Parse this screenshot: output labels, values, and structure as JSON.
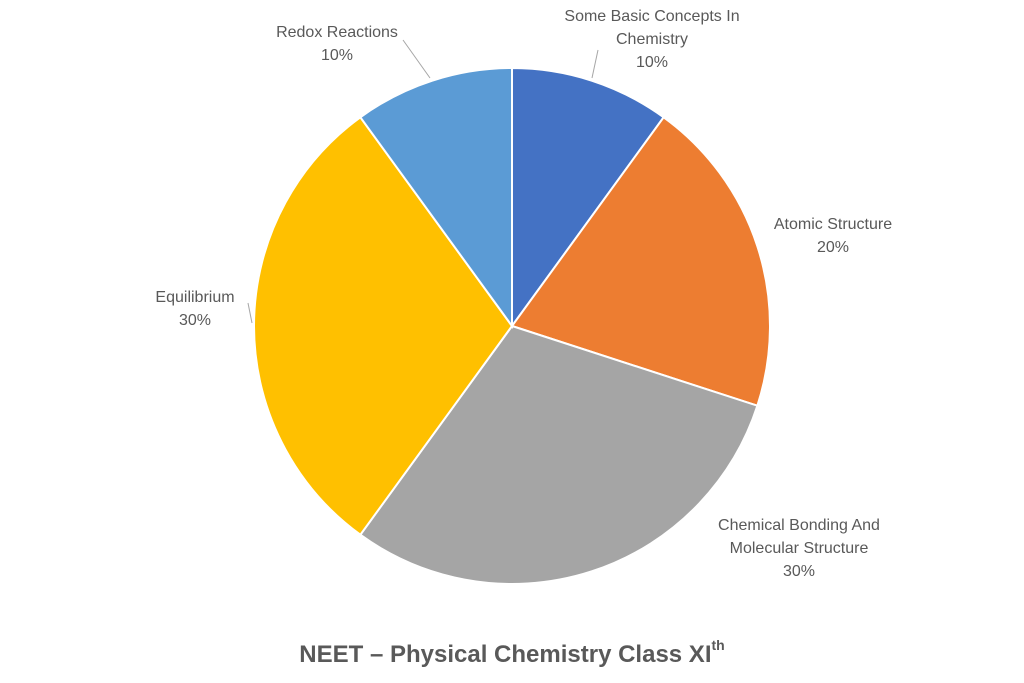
{
  "chart_data": {
    "type": "pie",
    "title": "NEET – Physical Chemistry Class XI",
    "title_superscript": "th",
    "start_angle_deg": 0,
    "direction": "clockwise",
    "slices": [
      {
        "label": "Some Basic Concepts In Chemistry",
        "label_lines": [
          "Some Basic Concepts In",
          "Chemistry"
        ],
        "value": 10,
        "display": "10%",
        "color": "#4472C4"
      },
      {
        "label": "Atomic Structure",
        "label_lines": [
          "Atomic Structure"
        ],
        "value": 20,
        "display": "20%",
        "color": "#ED7D31"
      },
      {
        "label": "Chemical Bonding And Molecular Structure",
        "label_lines": [
          "Chemical Bonding And",
          "Molecular Structure"
        ],
        "value": 30,
        "display": "30%",
        "color": "#A5A5A5"
      },
      {
        "label": "Equilibrium",
        "label_lines": [
          "Equilibrium"
        ],
        "value": 30,
        "display": "30%",
        "color": "#FFC000"
      },
      {
        "label": "Redox Reactions",
        "label_lines": [
          "Redox Reactions"
        ],
        "value": 10,
        "display": "10%",
        "color": "#5B9BD5"
      }
    ]
  }
}
